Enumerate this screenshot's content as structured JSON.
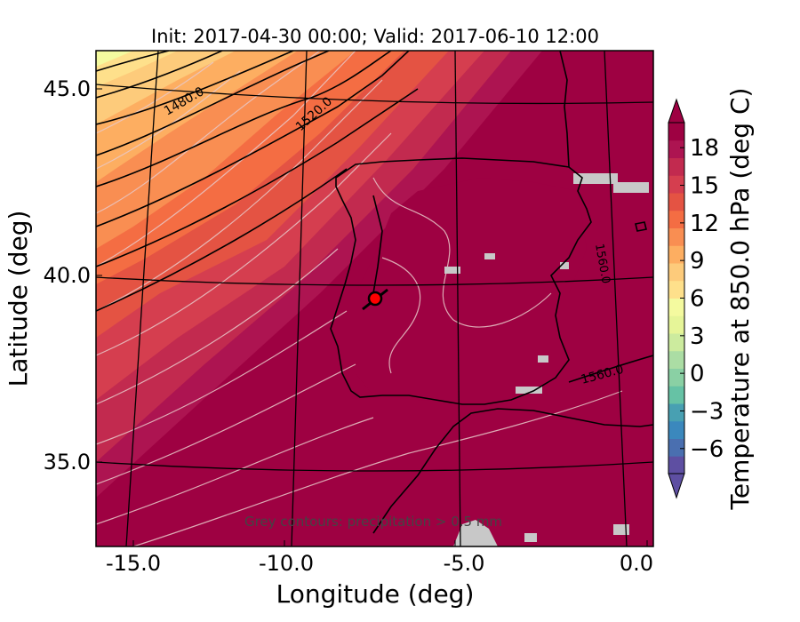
{
  "title": "Init: 2017-04-30 00:00; Valid: 2017-06-10 12:00",
  "x_axis": {
    "label": "Longitude (deg)",
    "range": [
      -15.8,
      0.2
    ],
    "ticks": [
      {
        "value": -15,
        "label": "-15.0"
      },
      {
        "value": -10,
        "label": "-10.0"
      },
      {
        "value": -5,
        "label": "-5.0"
      },
      {
        "value": 0,
        "label": "0.0"
      }
    ]
  },
  "y_axis": {
    "label": "Latitude (deg)",
    "range": [
      32.7,
      46.0
    ],
    "ticks": [
      {
        "value": 35,
        "label": "35.0"
      },
      {
        "value": 40,
        "label": "40.0"
      },
      {
        "value": 45,
        "label": "45.0"
      }
    ]
  },
  "colorbar": {
    "label": "Temperature at 850.0 hPa (deg C)",
    "range": [
      -8,
      20
    ],
    "ticks": [
      {
        "value": 18,
        "label": "18"
      },
      {
        "value": 15,
        "label": "15"
      },
      {
        "value": 12,
        "label": "12"
      },
      {
        "value": 9,
        "label": "9"
      },
      {
        "value": 6,
        "label": "6"
      },
      {
        "value": 3,
        "label": "3"
      },
      {
        "value": 0,
        "label": "0"
      },
      {
        "value": -3,
        "label": "−3"
      },
      {
        "value": -6,
        "label": "−6"
      }
    ],
    "colors": [
      "#5e4fa2",
      "#4a6fb0",
      "#3b88bd",
      "#48a0b2",
      "#66c2a5",
      "#8ad0a4",
      "#abdda4",
      "#cceb9e",
      "#e6f598",
      "#f4fa9f",
      "#fee08b",
      "#fdcb7b",
      "#fdae61",
      "#f98e52",
      "#f46d43",
      "#e45343",
      "#d53e4f",
      "#c22a4f",
      "#ad1451",
      "#9e0142"
    ],
    "extend": "both"
  },
  "contour_labels": [
    {
      "text": "1480.0"
    },
    {
      "text": "1520.0"
    },
    {
      "text": "1560.0"
    },
    {
      "text": "1560.0"
    }
  ],
  "footnote": "Grey contours: precipitation > 0.5 mm",
  "marker": {
    "lon": -7.6,
    "lat": 39.4,
    "color": "#ff0000"
  },
  "map_colors": {
    "hot": "#9e0142",
    "land_line": "#000000",
    "precip": "#c8c8c8",
    "grid": "#000000"
  }
}
